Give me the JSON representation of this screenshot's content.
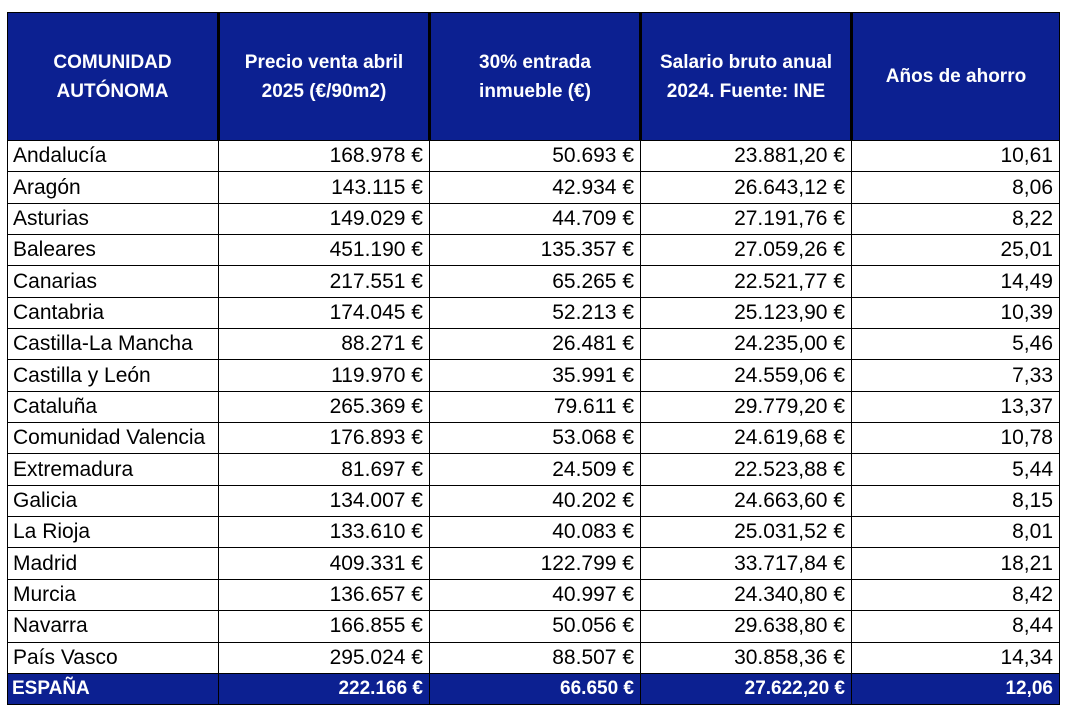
{
  "headers": [
    "COMUNIDAD AUTÓNOMA",
    "Precio venta abril 2025 (€/90m2)",
    "30% entrada inmueble (€)",
    "Salario bruto anual 2024. Fuente: INE",
    "Años de ahorro"
  ],
  "rows": [
    {
      "name": "Andalucía",
      "precio": "168.978 €",
      "entrada": "50.693 €",
      "salario": "23.881,20 €",
      "anos": "10,61"
    },
    {
      "name": "Aragón",
      "precio": "143.115 €",
      "entrada": "42.934 €",
      "salario": "26.643,12 €",
      "anos": "8,06"
    },
    {
      "name": "Asturias",
      "precio": "149.029 €",
      "entrada": "44.709 €",
      "salario": "27.191,76 €",
      "anos": "8,22"
    },
    {
      "name": "Baleares",
      "precio": "451.190 €",
      "entrada": "135.357 €",
      "salario": "27.059,26 €",
      "anos": "25,01"
    },
    {
      "name": "Canarias",
      "precio": "217.551 €",
      "entrada": "65.265 €",
      "salario": "22.521,77 €",
      "anos": "14,49"
    },
    {
      "name": "Cantabria",
      "precio": "174.045 €",
      "entrada": "52.213 €",
      "salario": "25.123,90 €",
      "anos": "10,39"
    },
    {
      "name": "Castilla-La Mancha",
      "precio": "88.271 €",
      "entrada": "26.481 €",
      "salario": "24.235,00 €",
      "anos": "5,46"
    },
    {
      "name": "Castilla y León",
      "precio": "119.970 €",
      "entrada": "35.991 €",
      "salario": "24.559,06 €",
      "anos": "7,33"
    },
    {
      "name": "Cataluña",
      "precio": "265.369 €",
      "entrada": "79.611 €",
      "salario": "29.779,20 €",
      "anos": "13,37"
    },
    {
      "name": "Comunidad Valencia",
      "precio": "176.893 €",
      "entrada": "53.068 €",
      "salario": "24.619,68 €",
      "anos": "10,78"
    },
    {
      "name": "Extremadura",
      "precio": "81.697 €",
      "entrada": "24.509 €",
      "salario": "22.523,88 €",
      "anos": "5,44"
    },
    {
      "name": "Galicia",
      "precio": "134.007 €",
      "entrada": "40.202 €",
      "salario": "24.663,60 €",
      "anos": "8,15"
    },
    {
      "name": "La Rioja",
      "precio": "133.610 €",
      "entrada": "40.083 €",
      "salario": "25.031,52 €",
      "anos": "8,01"
    },
    {
      "name": "Madrid",
      "precio": "409.331 €",
      "entrada": "122.799 €",
      "salario": "33.717,84 €",
      "anos": "18,21"
    },
    {
      "name": "Murcia",
      "precio": "136.657 €",
      "entrada": "40.997 €",
      "salario": "24.340,80 €",
      "anos": "8,42"
    },
    {
      "name": "Navarra",
      "precio": "166.855 €",
      "entrada": "50.056 €",
      "salario": "29.638,80 €",
      "anos": "8,44"
    },
    {
      "name": "País Vasco",
      "precio": "295.024 €",
      "entrada": "88.507 €",
      "salario": "30.858,36 €",
      "anos": "14,34"
    }
  ],
  "total": {
    "name": "ESPAÑA",
    "precio": "222.166 €",
    "entrada": "66.650 €",
    "salario": "27.622,20 €",
    "anos": "12,06"
  },
  "colors": {
    "header_bg": "#0c2091",
    "header_text": "#ffffff"
  }
}
